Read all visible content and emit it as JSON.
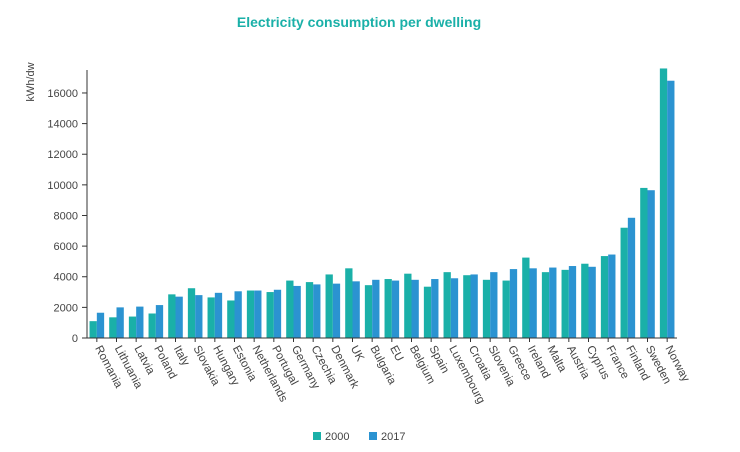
{
  "chart_data": {
    "type": "bar",
    "title": "Electricity consumption per dwelling",
    "xlabel": "",
    "ylabel": "kWh/dw",
    "ylim": [
      0,
      17500
    ],
    "yticks": [
      0,
      2000,
      4000,
      6000,
      8000,
      10000,
      12000,
      14000,
      16000
    ],
    "categories": [
      "Romania",
      "Lithuania",
      "Latvia",
      "Poland",
      "Italy",
      "Slovakia",
      "Hungary",
      "Estonia",
      "Netherlands",
      "Portugal",
      "Germany",
      "Czechia",
      "Denmark",
      "UK",
      "Bulgaria",
      "EU",
      "Belgium",
      "Spain",
      "Luxembourg",
      "Croatia",
      "Slovenia",
      "Greece",
      "Ireland",
      "Malta",
      "Austria",
      "Cyprus",
      "France",
      "Finland",
      "Sweden",
      "Norway"
    ],
    "series": [
      {
        "name": "2000",
        "color": "#1ab0a8",
        "values": [
          1100,
          1350,
          1400,
          1600,
          2850,
          3250,
          2650,
          2450,
          3100,
          3000,
          3750,
          3650,
          4150,
          4550,
          3450,
          3850,
          4200,
          3350,
          4300,
          4100,
          3800,
          3750,
          5250,
          4300,
          4450,
          4850,
          5350,
          7200,
          9800,
          17600
        ]
      },
      {
        "name": "2017",
        "color": "#2b93d1",
        "values": [
          1650,
          2000,
          2050,
          2150,
          2700,
          2800,
          2950,
          3050,
          3100,
          3150,
          3400,
          3500,
          3550,
          3700,
          3800,
          3750,
          3800,
          3850,
          3900,
          4150,
          4300,
          4500,
          4550,
          4600,
          4700,
          4650,
          5450,
          7850,
          9650,
          16800
        ]
      }
    ],
    "legend": "bottom-center"
  }
}
